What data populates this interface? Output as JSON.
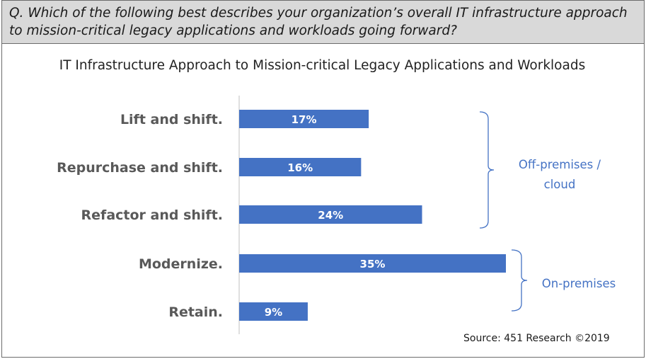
{
  "question": "Q. Which of the following best describes your organization’s overall IT infrastructure approach to mission-critical legacy applications and workloads going forward?",
  "source": "Source: 451 Research ©2019",
  "colors": {
    "bar": "#4472c4",
    "bracket": "#4472c4",
    "axis": "#bfbfbf",
    "category_text": "#595959"
  },
  "chart_data": {
    "type": "bar",
    "orientation": "horizontal",
    "title": "IT Infrastructure Approach to Mission-critical Legacy Applications and Workloads",
    "categories": [
      "Lift and shift.",
      "Repurchase and shift.",
      "Refactor and shift.",
      "Modernize.",
      "Retain."
    ],
    "values": [
      17,
      16,
      24,
      35,
      9
    ],
    "value_labels": [
      "17%",
      "16%",
      "24%",
      "35%",
      "9%"
    ],
    "unit": "%",
    "xlim": [
      0,
      35
    ],
    "grid": false,
    "groups": [
      {
        "label_lines": [
          "Off-premises /",
          "cloud"
        ],
        "categories": [
          "Lift and shift.",
          "Repurchase and shift.",
          "Refactor and shift."
        ]
      },
      {
        "label_lines": [
          "On-premises"
        ],
        "categories": [
          "Modernize.",
          "Retain."
        ]
      }
    ]
  }
}
